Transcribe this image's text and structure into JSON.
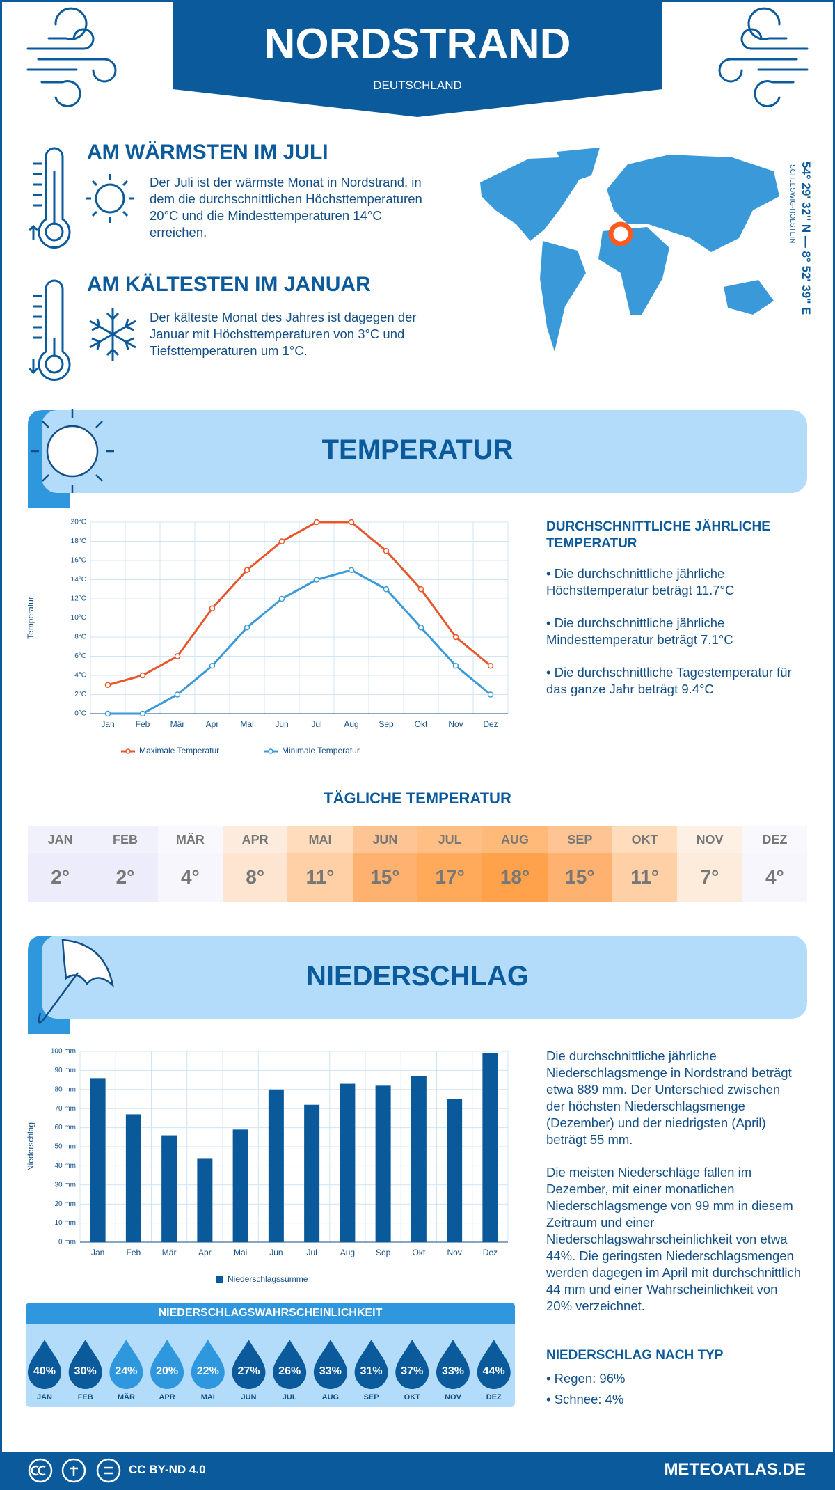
{
  "header": {
    "title": "NORDSTRAND",
    "subtitle": "DEUTSCHLAND"
  },
  "location": {
    "coordinates": "54° 29' 32'' N — 8° 52' 39'' E",
    "region": "SCHLESWIG-HOLSTEIN"
  },
  "warmest": {
    "title": "AM WÄRMSTEN IM JULI",
    "text": "Der Juli ist der wärmste Monat in Nordstrand, in dem die durchschnittlichen Höchsttemperaturen 20°C und die Mindesttemperaturen 14°C erreichen."
  },
  "coldest": {
    "title": "AM KÄLTESTEN IM JANUAR",
    "text": "Der kälteste Monat des Jahres ist dagegen der Januar mit Höchsttemperaturen von 3°C und Tiefsttemperaturen um 1°C."
  },
  "temperature": {
    "title": "TEMPERATUR",
    "summary_title": "DURCHSCHNITTLICHE JÄHRLICHE TEMPERATUR",
    "bullets": [
      "• Die durchschnittliche jährliche Höchsttemperatur beträgt 11.7°C",
      "• Die durchschnittliche jährliche Mindesttemperatur beträgt 7.1°C",
      "• Die durchschnittliche Tagestemperatur für das ganze Jahr beträgt 9.4°C"
    ]
  },
  "chart_data": [
    {
      "type": "line",
      "y_label": "Temperatur",
      "categories": [
        "Jan",
        "Feb",
        "Mär",
        "Apr",
        "Mai",
        "Jun",
        "Jul",
        "Aug",
        "Sep",
        "Okt",
        "Nov",
        "Dez"
      ],
      "series": [
        {
          "name": "Maximale Temperatur",
          "color": "#e8562a",
          "values": [
            3,
            4,
            6,
            11,
            15,
            18,
            20,
            20,
            17,
            13,
            8,
            5
          ]
        },
        {
          "name": "Minimale Temperatur",
          "color": "#3a9ad9",
          "values": [
            0,
            0,
            2,
            5,
            9,
            12,
            14,
            15,
            13,
            9,
            5,
            2
          ]
        }
      ],
      "ylim": [
        0,
        20
      ],
      "yticks": [
        {
          "value": 0,
          "label": "0°C"
        },
        {
          "value": 2,
          "label": "2°C"
        },
        {
          "value": 4,
          "label": "4°C"
        },
        {
          "value": 6,
          "label": "6°C"
        },
        {
          "value": 8,
          "label": "8°C"
        },
        {
          "value": 10,
          "label": "10°C"
        },
        {
          "value": 12,
          "label": "12°C"
        },
        {
          "value": 14,
          "label": "14°C"
        },
        {
          "value": 16,
          "label": "16°C"
        },
        {
          "value": 18,
          "label": "18°C"
        },
        {
          "value": 20,
          "label": "20°C"
        }
      ],
      "grid": true
    },
    {
      "type": "bar",
      "y_label": "Niederschlag",
      "categories": [
        "Jan",
        "Feb",
        "Mär",
        "Apr",
        "Mai",
        "Jun",
        "Jul",
        "Aug",
        "Sep",
        "Okt",
        "Nov",
        "Dez"
      ],
      "series": [
        {
          "name": "Niederschlagssumme",
          "color": "#0a5a9b",
          "values": [
            86,
            67,
            56,
            44,
            59,
            80,
            72,
            83,
            82,
            87,
            75,
            99
          ]
        }
      ],
      "ylim": [
        0,
        100
      ],
      "yticks": [
        {
          "value": 0,
          "label": "0 mm"
        },
        {
          "value": 10,
          "label": "10 mm"
        },
        {
          "value": 20,
          "label": "20 mm"
        },
        {
          "value": 30,
          "label": "30 mm"
        },
        {
          "value": 40,
          "label": "40 mm"
        },
        {
          "value": 50,
          "label": "50 mm"
        },
        {
          "value": 60,
          "label": "60 mm"
        },
        {
          "value": 70,
          "label": "70 mm"
        },
        {
          "value": 80,
          "label": "80 mm"
        },
        {
          "value": 90,
          "label": "90 mm"
        },
        {
          "value": 100,
          "label": "100 mm"
        }
      ],
      "grid": true
    }
  ],
  "daily": {
    "title": "TÄGLICHE TEMPERATUR",
    "months": [
      "JAN",
      "FEB",
      "MÄR",
      "APR",
      "MAI",
      "JUN",
      "JUL",
      "AUG",
      "SEP",
      "OKT",
      "NOV",
      "DEZ"
    ],
    "values": [
      "2°",
      "2°",
      "4°",
      "8°",
      "11°",
      "15°",
      "17°",
      "18°",
      "15°",
      "11°",
      "7°",
      "4°"
    ],
    "colors": [
      "#ececfb",
      "#ececfb",
      "#f6f6fc",
      "#fde5d2",
      "#ffd0a6",
      "#ffb16f",
      "#ffa95a",
      "#ffa24b",
      "#ffb16f",
      "#ffd0a6",
      "#fdebdb",
      "#f6f6fc"
    ]
  },
  "precipitation": {
    "title": "NIEDERSCHLAG",
    "paragraphs": [
      "Die durchschnittliche jährliche Niederschlagsmenge in Nordstrand beträgt etwa 889 mm. Der Unterschied zwischen der höchsten Niederschlagsmenge (Dezember) und der niedrigsten (April) beträgt 55 mm.",
      "Die meisten Niederschläge fallen im Dezember, mit einer monatlichen Niederschlagsmenge von 99 mm in diesem Zeitraum und einer Niederschlagswahrscheinlichkeit von etwa 44%. Die geringsten Niederschlagsmengen werden dagegen im April mit durchschnittlich 44 mm und einer Wahrscheinlichkeit von 20% verzeichnet."
    ],
    "type_title": "NIEDERSCHLAG NACH TYP",
    "types": [
      "• Regen: 96%",
      "• Schnee: 4%"
    ]
  },
  "probability": {
    "title": "NIEDERSCHLAGSWAHRSCHEINLICHKEIT",
    "months": [
      "JAN",
      "FEB",
      "MÄR",
      "APR",
      "MAI",
      "JUN",
      "JUL",
      "AUG",
      "SEP",
      "OKT",
      "NOV",
      "DEZ"
    ],
    "values": [
      40,
      30,
      24,
      20,
      22,
      27,
      26,
      33,
      31,
      37,
      33,
      44
    ],
    "value_labels": [
      "40%",
      "30%",
      "24%",
      "20%",
      "22%",
      "27%",
      "26%",
      "33%",
      "31%",
      "37%",
      "33%",
      "44%"
    ],
    "colors": [
      "#0b5a9c",
      "#0b5a9c",
      "#2f97dd",
      "#2f97dd",
      "#2f97dd",
      "#0b5a9c",
      "#0b5a9c",
      "#0b5a9c",
      "#0b5a9c",
      "#0b5a9c",
      "#0b5a9c",
      "#0b5a9c"
    ]
  },
  "footer": {
    "license": "CC BY-ND 4.0",
    "site": "METEOATLAS.DE"
  }
}
